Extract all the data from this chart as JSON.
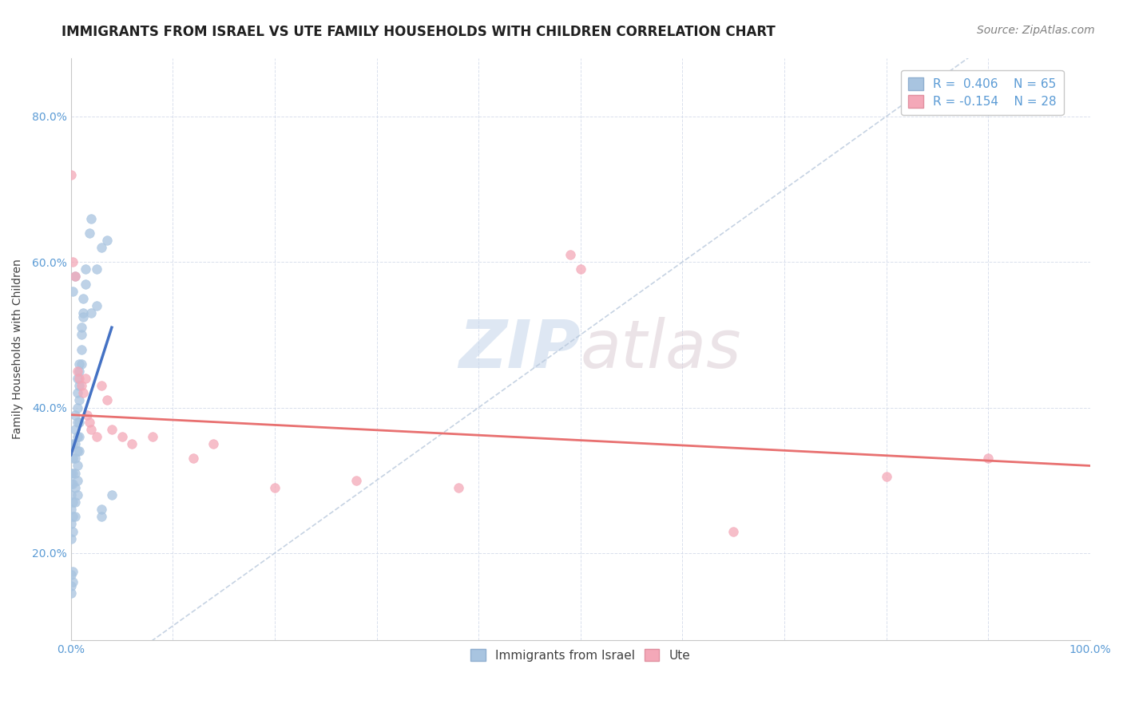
{
  "title": "IMMIGRANTS FROM ISRAEL VS UTE FAMILY HOUSEHOLDS WITH CHILDREN CORRELATION CHART",
  "source": "Source: ZipAtlas.com",
  "ylabel": "Family Households with Children",
  "xlim": [
    0.0,
    1.0
  ],
  "ylim": [
    0.08,
    0.88
  ],
  "yticks": [
    0.2,
    0.4,
    0.6,
    0.8
  ],
  "ytick_labels": [
    "20.0%",
    "40.0%",
    "60.0%",
    "80.0%"
  ],
  "xtick_labels": [
    "0.0%",
    "",
    "",
    "",
    "",
    "",
    "",
    "",
    "",
    "",
    "100.0%"
  ],
  "color_israel": "#a8c4e0",
  "color_ute": "#f4a8b8",
  "line_color_israel": "#4472c4",
  "line_color_ute": "#e87070",
  "diag_color": "#b8c8dc",
  "watermark_zip": "ZIP",
  "watermark_atlas": "atlas",
  "israel_points": [
    [
      0.0,
      0.31
    ],
    [
      0.0,
      0.295
    ],
    [
      0.0,
      0.28
    ],
    [
      0.0,
      0.26
    ],
    [
      0.0,
      0.24
    ],
    [
      0.0,
      0.22
    ],
    [
      0.0,
      0.155
    ],
    [
      0.002,
      0.35
    ],
    [
      0.002,
      0.33
    ],
    [
      0.002,
      0.31
    ],
    [
      0.002,
      0.295
    ],
    [
      0.002,
      0.27
    ],
    [
      0.002,
      0.25
    ],
    [
      0.002,
      0.23
    ],
    [
      0.004,
      0.39
    ],
    [
      0.004,
      0.37
    ],
    [
      0.004,
      0.35
    ],
    [
      0.004,
      0.33
    ],
    [
      0.004,
      0.31
    ],
    [
      0.004,
      0.29
    ],
    [
      0.004,
      0.27
    ],
    [
      0.004,
      0.25
    ],
    [
      0.006,
      0.42
    ],
    [
      0.006,
      0.4
    ],
    [
      0.006,
      0.38
    ],
    [
      0.006,
      0.36
    ],
    [
      0.006,
      0.34
    ],
    [
      0.006,
      0.32
    ],
    [
      0.006,
      0.3
    ],
    [
      0.006,
      0.28
    ],
    [
      0.008,
      0.45
    ],
    [
      0.008,
      0.43
    ],
    [
      0.008,
      0.41
    ],
    [
      0.008,
      0.38
    ],
    [
      0.008,
      0.36
    ],
    [
      0.008,
      0.34
    ],
    [
      0.01,
      0.5
    ],
    [
      0.01,
      0.48
    ],
    [
      0.01,
      0.46
    ],
    [
      0.012,
      0.55
    ],
    [
      0.012,
      0.53
    ],
    [
      0.014,
      0.59
    ],
    [
      0.014,
      0.57
    ],
    [
      0.018,
      0.64
    ],
    [
      0.02,
      0.66
    ],
    [
      0.025,
      0.59
    ],
    [
      0.03,
      0.62
    ],
    [
      0.035,
      0.63
    ],
    [
      0.02,
      0.53
    ],
    [
      0.025,
      0.54
    ],
    [
      0.002,
      0.56
    ],
    [
      0.004,
      0.58
    ],
    [
      0.03,
      0.26
    ],
    [
      0.03,
      0.25
    ],
    [
      0.04,
      0.28
    ],
    [
      0.002,
      0.175
    ],
    [
      0.002,
      0.16
    ],
    [
      0.0,
      0.17
    ],
    [
      0.0,
      0.145
    ],
    [
      0.006,
      0.44
    ],
    [
      0.008,
      0.46
    ],
    [
      0.01,
      0.51
    ],
    [
      0.012,
      0.525
    ]
  ],
  "ute_points": [
    [
      0.0,
      0.72
    ],
    [
      0.002,
      0.6
    ],
    [
      0.004,
      0.58
    ],
    [
      0.006,
      0.45
    ],
    [
      0.008,
      0.44
    ],
    [
      0.01,
      0.43
    ],
    [
      0.012,
      0.42
    ],
    [
      0.014,
      0.44
    ],
    [
      0.016,
      0.39
    ],
    [
      0.018,
      0.38
    ],
    [
      0.02,
      0.37
    ],
    [
      0.025,
      0.36
    ],
    [
      0.03,
      0.43
    ],
    [
      0.035,
      0.41
    ],
    [
      0.04,
      0.37
    ],
    [
      0.05,
      0.36
    ],
    [
      0.06,
      0.35
    ],
    [
      0.08,
      0.36
    ],
    [
      0.12,
      0.33
    ],
    [
      0.14,
      0.35
    ],
    [
      0.2,
      0.29
    ],
    [
      0.28,
      0.3
    ],
    [
      0.38,
      0.29
    ],
    [
      0.49,
      0.61
    ],
    [
      0.5,
      0.59
    ],
    [
      0.65,
      0.23
    ],
    [
      0.8,
      0.305
    ],
    [
      0.9,
      0.33
    ]
  ],
  "israel_line": [
    [
      0.0,
      0.335
    ],
    [
      0.04,
      0.51
    ]
  ],
  "ute_line": [
    [
      0.0,
      0.39
    ],
    [
      1.0,
      0.32
    ]
  ],
  "title_fontsize": 12,
  "axis_label_fontsize": 10,
  "tick_fontsize": 10,
  "legend_fontsize": 11,
  "source_fontsize": 10
}
